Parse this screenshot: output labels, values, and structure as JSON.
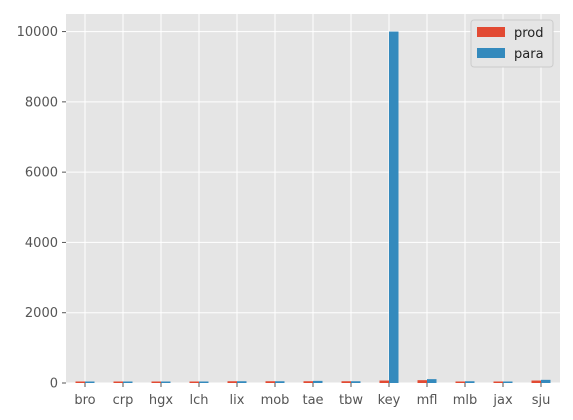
{
  "chart_data": {
    "type": "bar",
    "title": "",
    "xlabel": "",
    "ylabel": "",
    "categories": [
      "bro",
      "crp",
      "hgx",
      "lch",
      "lix",
      "mob",
      "tae",
      "tbw",
      "key",
      "mfl",
      "mlb",
      "jax",
      "sju"
    ],
    "series": [
      {
        "name": "prod",
        "color": "#E24A33",
        "values": [
          20,
          20,
          40,
          20,
          50,
          50,
          50,
          50,
          70,
          80,
          40,
          40,
          70
        ]
      },
      {
        "name": "para",
        "color": "#348ABD",
        "values": [
          10,
          10,
          20,
          10,
          50,
          50,
          60,
          50,
          10000,
          110,
          50,
          20,
          90
        ]
      }
    ],
    "yticks": [
      0,
      2000,
      4000,
      6000,
      8000,
      10000
    ],
    "ytick_labels": [
      "0",
      "2000",
      "4000",
      "6000",
      "8000",
      "10000"
    ],
    "ylim": [
      0,
      10500
    ],
    "grid": true,
    "legend_position": "top-right",
    "background_color": "#E5E5E5",
    "grid_color": "#FFFFFF"
  }
}
